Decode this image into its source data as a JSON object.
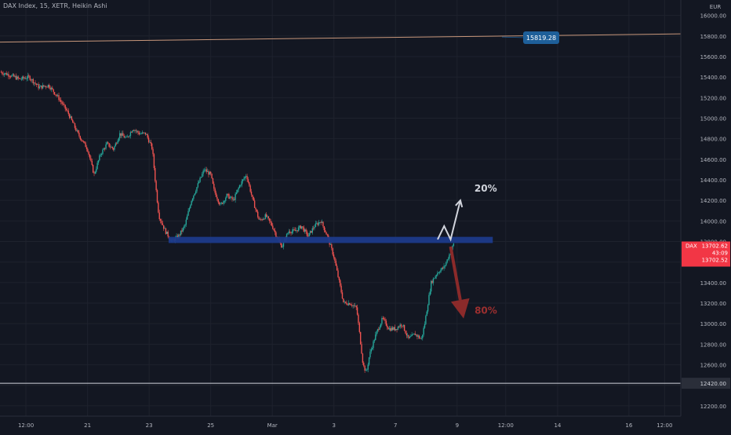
{
  "header": {
    "symbol_title": "DAX Index, 15, XETR, Heikin Ashi"
  },
  "colors": {
    "background": "#131722",
    "grid": "#1e222d",
    "axis_text": "#b2b5be",
    "bull": "#26a69a",
    "bear": "#ef5350",
    "resistance_zone": "#1c3a8a",
    "up_arrow": "#d1d4dc",
    "down_arrow": "#8b2a2a",
    "up_label": "#d1d4dc",
    "down_label": "#9c2f2f",
    "price_badge": "#f23645",
    "callout": "#1e5f99",
    "trend_line": "#c8977b"
  },
  "chart_data": {
    "type": "candlestick",
    "currency": "EUR",
    "ylim": [
      12100,
      16150
    ],
    "y_ticks": [
      12200,
      12400,
      12600,
      12800,
      13000,
      13200,
      13400,
      13600,
      13800,
      14000,
      14200,
      14400,
      14600,
      14800,
      15000,
      15200,
      15400,
      15600,
      15800,
      16000
    ],
    "x_tick_labels": [
      "12:00",
      "21",
      "23",
      "25",
      "Mar",
      "3",
      "7",
      "9",
      "12:00",
      "14",
      "16",
      "12:00"
    ],
    "price_path": [
      [
        0,
        15450
      ],
      [
        3,
        15420
      ],
      [
        6,
        15380
      ],
      [
        9,
        15400
      ],
      [
        12,
        15300
      ],
      [
        15,
        15320
      ],
      [
        18,
        15200
      ],
      [
        21,
        15050
      ],
      [
        24,
        14850
      ],
      [
        27,
        14700
      ],
      [
        29,
        14450
      ],
      [
        31,
        14650
      ],
      [
        33,
        14750
      ],
      [
        35,
        14700
      ],
      [
        37,
        14850
      ],
      [
        39,
        14800
      ],
      [
        41,
        14900
      ],
      [
        43,
        14850
      ],
      [
        45,
        14850
      ],
      [
        47,
        14700
      ],
      [
        48,
        14350
      ],
      [
        49,
        14050
      ],
      [
        51,
        13900
      ],
      [
        53,
        13800
      ],
      [
        55,
        13850
      ],
      [
        57,
        13950
      ],
      [
        59,
        14200
      ],
      [
        61,
        14350
      ],
      [
        63,
        14500
      ],
      [
        65,
        14450
      ],
      [
        66,
        14300
      ],
      [
        68,
        14150
      ],
      [
        70,
        14250
      ],
      [
        72,
        14200
      ],
      [
        74,
        14350
      ],
      [
        76,
        14450
      ],
      [
        78,
        14200
      ],
      [
        80,
        14000
      ],
      [
        82,
        14050
      ],
      [
        84,
        13950
      ],
      [
        86,
        13800
      ],
      [
        87,
        13750
      ],
      [
        89,
        13900
      ],
      [
        91,
        13900
      ],
      [
        93,
        13950
      ],
      [
        95,
        13850
      ],
      [
        97,
        13950
      ],
      [
        99,
        14000
      ],
      [
        101,
        13850
      ],
      [
        103,
        13650
      ],
      [
        104,
        13500
      ],
      [
        106,
        13200
      ],
      [
        108,
        13200
      ],
      [
        110,
        13150
      ],
      [
        112,
        12600
      ],
      [
        113,
        12520
      ],
      [
        114,
        12700
      ],
      [
        116,
        12900
      ],
      [
        118,
        13050
      ],
      [
        120,
        12950
      ],
      [
        122,
        12950
      ],
      [
        124,
        13000
      ],
      [
        126,
        12850
      ],
      [
        128,
        12900
      ],
      [
        130,
        12850
      ],
      [
        131,
        13000
      ],
      [
        133,
        13400
      ],
      [
        135,
        13500
      ],
      [
        137,
        13550
      ],
      [
        139,
        13700
      ],
      [
        140,
        13780
      ]
    ],
    "resistance_zone": {
      "low": 13785,
      "high": 13845,
      "x_start": 52,
      "x_end": 152
    },
    "horizontal_line": 12420,
    "trend_line": {
      "from": [
        0,
        15740
      ],
      "to": [
        210,
        15820
      ]
    },
    "callout": {
      "price": 15819.28,
      "label": "15819.28"
    },
    "scenario_up": {
      "label": "20%",
      "path": [
        [
          135,
          13820
        ],
        [
          137,
          13950
        ],
        [
          139,
          13820
        ],
        [
          142,
          14200
        ]
      ]
    },
    "scenario_down": {
      "label": "80%",
      "path": [
        [
          139,
          13750
        ],
        [
          143,
          13050
        ]
      ]
    },
    "last_price": {
      "symbol": "DAX",
      "price_label": "13702.62",
      "timer_label": "43:09",
      "prev_label": "13702.52"
    },
    "right_bottom_label": "12420.00"
  }
}
